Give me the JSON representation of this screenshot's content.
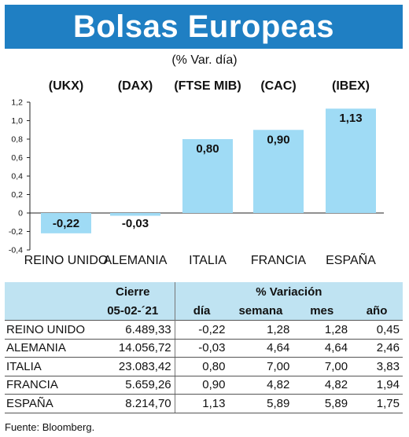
{
  "header": {
    "title": "Bolsas Europeas",
    "subtitle": "(% Var. día)"
  },
  "chart_data": {
    "type": "bar",
    "categories": [
      "REINO UNIDO",
      "ALEMANIA",
      "ITALIA",
      "FRANCIA",
      "ESPAÑA"
    ],
    "index_codes": [
      "(UKX)",
      "(DAX)",
      "(FTSE MIB)",
      "(CAC)",
      "(IBEX)"
    ],
    "values": [
      -0.22,
      -0.03,
      0.8,
      0.9,
      1.13
    ],
    "value_labels": [
      "-0,22",
      "-0,03",
      "0,80",
      "0,90",
      "1,13"
    ],
    "yticks": [
      1.2,
      1.0,
      0.8,
      0.6,
      0.4,
      0.2,
      0,
      -0.2,
      -0.4
    ],
    "ytick_labels": [
      "1,2",
      "1,0",
      "0,8",
      "0,6",
      "0,4",
      "0,2",
      "0",
      "-0,2",
      "-0,4"
    ],
    "ylim": [
      -0.4,
      1.2
    ],
    "bar_color": "#9fdbf5",
    "grid": false
  },
  "table": {
    "header_group_cierre": "Cierre",
    "header_group_variacion": "% Variación",
    "header_date": "05-02-´21",
    "header_cols": [
      "día",
      "semana",
      "mes",
      "año"
    ],
    "rows": [
      {
        "name": "REINO UNIDO",
        "close": "6.489,33",
        "dia": "-0,22",
        "semana": "1,28",
        "mes": "1,28",
        "anio": "0,45"
      },
      {
        "name": "ALEMANIA",
        "close": "14.056,72",
        "dia": "-0,03",
        "semana": "4,64",
        "mes": "4,64",
        "anio": "2,46"
      },
      {
        "name": "ITALIA",
        "close": "23.083,42",
        "dia": "0,80",
        "semana": "7,00",
        "mes": "7,00",
        "anio": "3,83"
      },
      {
        "name": "FRANCIA",
        "close": "5.659,26",
        "dia": "0,90",
        "semana": "4,82",
        "mes": "4,82",
        "anio": "1,94"
      },
      {
        "name": "ESPAÑA",
        "close": "8.214,70",
        "dia": "1,13",
        "semana": "5,89",
        "mes": "5,89",
        "anio": "1,75"
      }
    ]
  },
  "footer": {
    "source": "Fuente: Bloomberg."
  },
  "colors": {
    "title_bg": "#1f7fc3",
    "table_header_bg": "#bfe3f2"
  }
}
